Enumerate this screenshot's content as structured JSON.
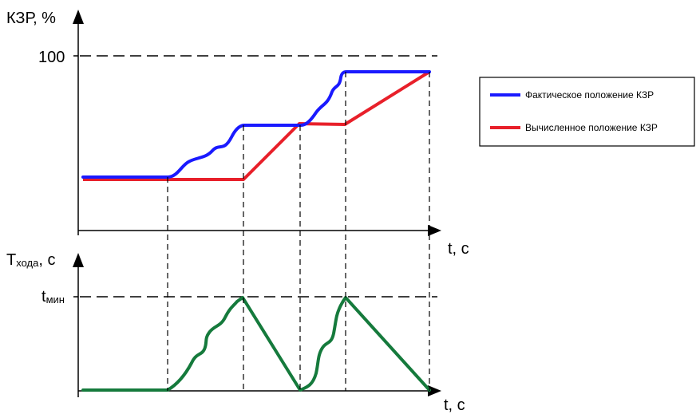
{
  "top_chart": {
    "y_axis_label": "КЗР, %",
    "y_tick_label": "100",
    "x_axis_label": "t, c"
  },
  "bottom_chart": {
    "y_axis_label_main": "T",
    "y_axis_label_sub": "хода",
    "y_axis_label_tail": ", c",
    "y_tick_label_main": "t",
    "y_tick_label_sub": "мин",
    "x_axis_label": "t, c"
  },
  "legend": {
    "items": [
      {
        "label": "Фактическое положение КЗР",
        "color": "#1a1aff"
      },
      {
        "label": "Вычисленное положение КЗР",
        "color": "#e8202a"
      }
    ]
  },
  "colors": {
    "actual": "#1a1aff",
    "computed": "#e8202a",
    "travel_time": "#157a3c",
    "axis": "#000000"
  }
}
